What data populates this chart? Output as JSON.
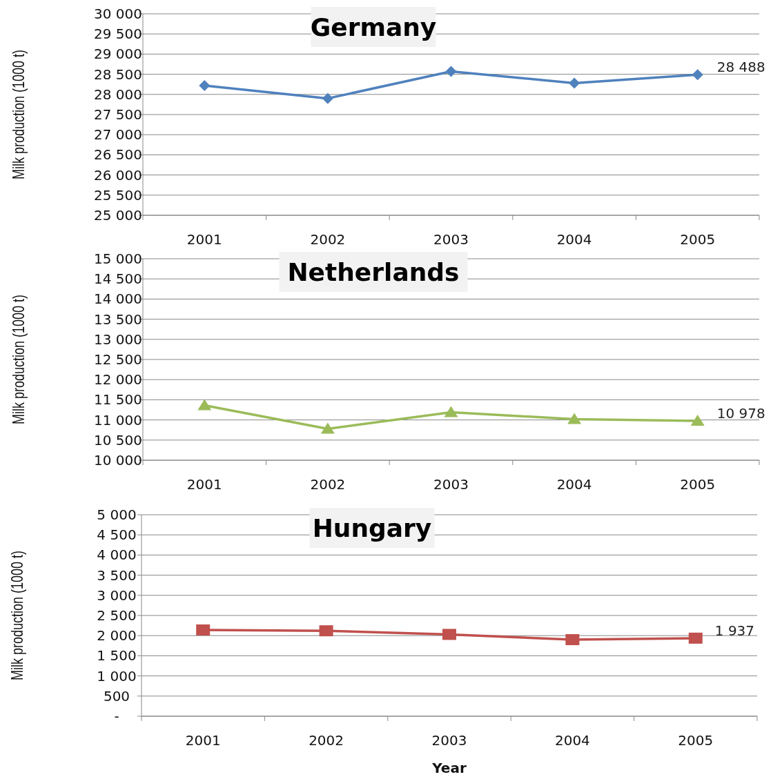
{
  "chart_data": [
    {
      "type": "line",
      "title": "Germany",
      "ylabel": "Milk production (1000 t)",
      "categories": [
        "2001",
        "2002",
        "2003",
        "2004",
        "2005"
      ],
      "series": [
        {
          "color": "#4f81bd",
          "values": [
            28220,
            27900,
            28570,
            28280,
            28488
          ],
          "value_labels": [
            null,
            null,
            null,
            null,
            "28 488"
          ]
        }
      ],
      "marker": "diamond",
      "ylim": [
        25000,
        30000
      ],
      "yticks": [
        {
          "value": 25000,
          "label": "25 000"
        },
        {
          "value": 25500,
          "label": "25 500"
        },
        {
          "value": 26000,
          "label": "26 000"
        },
        {
          "value": 26500,
          "label": "26 500"
        },
        {
          "value": 27000,
          "label": "27 000"
        },
        {
          "value": 27500,
          "label": "27 500"
        },
        {
          "value": 28000,
          "label": "28 000"
        },
        {
          "value": 28500,
          "label": "28 500"
        },
        {
          "value": 29000,
          "label": "29 000"
        },
        {
          "value": 29500,
          "label": "29 500"
        },
        {
          "value": 30000,
          "label": "30 000"
        }
      ],
      "grid": "y"
    },
    {
      "type": "line",
      "title": "Netherlands",
      "ylabel": "Milk production (1000 t)",
      "categories": [
        "2001",
        "2002",
        "2003",
        "2004",
        "2005"
      ],
      "series": [
        {
          "color": "#9bbb59",
          "values": [
            11360,
            10780,
            11190,
            11020,
            10978
          ],
          "value_labels": [
            null,
            null,
            null,
            null,
            "10 978"
          ]
        }
      ],
      "marker": "triangle",
      "ylim": [
        10000,
        15000
      ],
      "yticks": [
        {
          "value": 10000,
          "label": "10 000"
        },
        {
          "value": 10500,
          "label": "10 500"
        },
        {
          "value": 11000,
          "label": "11 000"
        },
        {
          "value": 11500,
          "label": "11 500"
        },
        {
          "value": 12000,
          "label": "12 000"
        },
        {
          "value": 12500,
          "label": "12 500"
        },
        {
          "value": 13000,
          "label": "13 000"
        },
        {
          "value": 13500,
          "label": "13 500"
        },
        {
          "value": 14000,
          "label": "14 000"
        },
        {
          "value": 14500,
          "label": "14 500"
        },
        {
          "value": 15000,
          "label": "15 000"
        }
      ],
      "grid": "y"
    },
    {
      "type": "line",
      "title": "Hungary",
      "ylabel": "Milk production (1000 t)",
      "xlabel": "Year",
      "categories": [
        "2001",
        "2002",
        "2003",
        "2004",
        "2005"
      ],
      "series": [
        {
          "color": "#c0504d",
          "values": [
            2140,
            2120,
            2030,
            1900,
            1937
          ],
          "value_labels": [
            null,
            null,
            null,
            null,
            "1 937"
          ]
        }
      ],
      "marker": "square",
      "ylim": [
        0,
        5000
      ],
      "yticks": [
        {
          "value": 0,
          "label": "-"
        },
        500,
        {
          "value": 1000,
          "label": "1 000"
        },
        {
          "value": 1500,
          "label": "1 500"
        },
        {
          "value": 2000,
          "label": "2 000"
        },
        {
          "value": 2500,
          "label": "2 500"
        },
        {
          "value": 3000,
          "label": "3 000"
        },
        {
          "value": 3500,
          "label": "3 500"
        },
        {
          "value": 4000,
          "label": "4 000"
        },
        {
          "value": 4500,
          "label": "4 500"
        },
        {
          "value": 5000,
          "label": "5 000"
        }
      ],
      "grid": "y"
    }
  ]
}
